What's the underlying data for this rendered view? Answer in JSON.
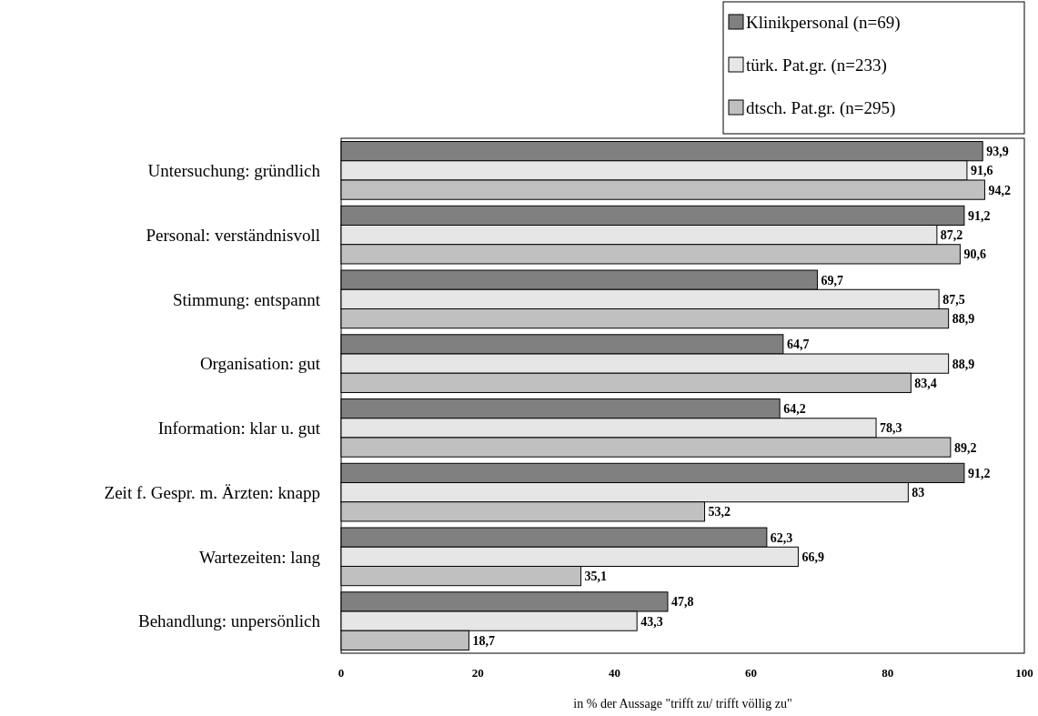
{
  "chart_data": {
    "type": "bar",
    "orientation": "horizontal",
    "xlabel": "in % der Aussage \"trifft zu/ trifft völlig zu\"",
    "categories": [
      "Untersuchung: gründlich",
      "Personal: verständnisvoll",
      "Stimmung: entspannt",
      "Organisation: gut",
      "Information: klar u. gut",
      "Zeit f. Gespr. m. Ärzten: knapp",
      "Wartezeiten: lang",
      "Behandlung: unpersönlich"
    ],
    "series": [
      {
        "name": "Klinikpersonal (n=69)",
        "color": "#808080",
        "values": [
          93.9,
          91.2,
          69.7,
          64.7,
          64.2,
          91.2,
          62.3,
          47.8
        ],
        "value_labels": [
          "93,9",
          "91,2",
          "69,7",
          "64,7",
          "64,2",
          "91,2",
          "62,3",
          "47,8"
        ]
      },
      {
        "name": "türk. Pat.gr. (n=233)",
        "color": "#e6e6e6",
        "values": [
          91.6,
          87.2,
          87.5,
          88.9,
          78.3,
          83,
          66.9,
          43.3
        ],
        "value_labels": [
          "91,6",
          "87,2",
          "87,5",
          "88,9",
          "78,3",
          "83",
          "66,9",
          "43,3"
        ]
      },
      {
        "name": "dtsch. Pat.gr. (n=295)",
        "color": "#c0c0c0",
        "values": [
          94.2,
          90.6,
          88.9,
          83.4,
          89.2,
          53.2,
          35.1,
          18.7
        ],
        "value_labels": [
          "94,2",
          "90,6",
          "88,9",
          "83,4",
          "89,2",
          "53,2",
          "35,1",
          "18,7"
        ]
      }
    ],
    "xlim": [
      0,
      100
    ],
    "xticks": [
      0,
      20,
      40,
      60,
      80,
      100
    ],
    "grid": false,
    "legend": "top right"
  }
}
